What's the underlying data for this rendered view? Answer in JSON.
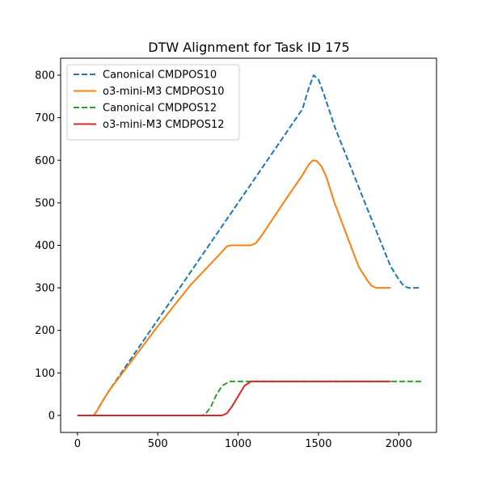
{
  "chart_data": {
    "type": "line",
    "title": "DTW Alignment for Task ID 175",
    "xlabel": "",
    "ylabel": "",
    "xlim": [
      -105,
      2235
    ],
    "ylim": [
      -40,
      840
    ],
    "xticks": [
      0,
      500,
      1000,
      1500,
      2000
    ],
    "yticks": [
      0,
      100,
      200,
      300,
      400,
      500,
      600,
      700,
      800
    ],
    "grid": false,
    "legend_position": "top-left",
    "series": [
      {
        "name": "Canonical CMDPOS10",
        "color": "#1f77b4",
        "dash": "dashed",
        "x": [
          0,
          100,
          120,
          150,
          200,
          600,
          1000,
          1400,
          1440,
          1470,
          1500,
          1530,
          1600,
          1800,
          1950,
          2000,
          2030,
          2060,
          2090,
          2130
        ],
        "y": [
          0,
          0,
          10,
          30,
          60,
          280,
          500,
          720,
          770,
          800,
          790,
          760,
          680,
          490,
          350,
          320,
          305,
          300,
          300,
          300
        ]
      },
      {
        "name": "o3-mini-M3 CMDPOS10",
        "color": "#ff7f0e",
        "dash": "solid",
        "x": [
          0,
          100,
          120,
          150,
          200,
          500,
          700,
          900,
          930,
          960,
          1000,
          1080,
          1110,
          1150,
          1300,
          1400,
          1440,
          1465,
          1490,
          1520,
          1550,
          1600,
          1700,
          1750,
          1800,
          1830,
          1860,
          1900,
          1950
        ],
        "y": [
          0,
          0,
          10,
          30,
          60,
          210,
          305,
          385,
          398,
          400,
          400,
          400,
          405,
          425,
          510,
          565,
          590,
          600,
          598,
          585,
          560,
          500,
          400,
          350,
          320,
          305,
          300,
          300,
          300
        ]
      },
      {
        "name": "Canonical CMDPOS12",
        "color": "#2ca02c",
        "dash": "dashed",
        "x": [
          0,
          780,
          800,
          830,
          860,
          900,
          950,
          1000,
          1500,
          2000,
          2140
        ],
        "y": [
          0,
          0,
          5,
          20,
          45,
          70,
          80,
          80,
          80,
          80,
          80
        ]
      },
      {
        "name": "o3-mini-M3 CMDPOS12",
        "color": "#d62728",
        "dash": "solid",
        "x": [
          0,
          900,
          930,
          960,
          1000,
          1040,
          1080,
          1100,
          1500,
          1950
        ],
        "y": [
          0,
          0,
          5,
          20,
          45,
          70,
          80,
          80,
          80,
          80
        ]
      }
    ]
  }
}
